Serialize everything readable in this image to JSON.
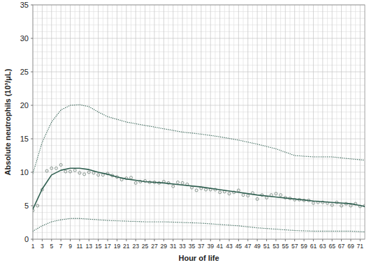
{
  "chart_data": {
    "type": "line",
    "x_label": "Hour of life",
    "y_label": "Absolute neutrophils (10³/μL)",
    "xlim": [
      1,
      72
    ],
    "xticks": [
      1,
      3,
      5,
      7,
      9,
      11,
      13,
      15,
      17,
      19,
      21,
      23,
      25,
      27,
      29,
      31,
      33,
      35,
      37,
      39,
      41,
      43,
      45,
      47,
      49,
      51,
      53,
      55,
      57,
      59,
      61,
      63,
      65,
      67,
      69,
      71
    ],
    "ylim": [
      0,
      35
    ],
    "yticks": [
      0,
      5,
      10,
      15,
      20,
      25,
      30,
      35
    ],
    "grid": true,
    "series": [
      {
        "type": "scatter",
        "marker": "circle",
        "color": "#7d8c85",
        "x": [
          1,
          2,
          3,
          4,
          5,
          6,
          7,
          8,
          9,
          10,
          11,
          12,
          13,
          14,
          15,
          16,
          17,
          18,
          19,
          20,
          21,
          22,
          23,
          24,
          25,
          26,
          27,
          28,
          29,
          30,
          31,
          32,
          33,
          34,
          35,
          36,
          37,
          38,
          39,
          40,
          41,
          42,
          43,
          44,
          45,
          46,
          47,
          48,
          49,
          50,
          51,
          52,
          53,
          54,
          55,
          56,
          57,
          58,
          59,
          60,
          61,
          62,
          63,
          64,
          65,
          66,
          67,
          68,
          69,
          70,
          71,
          72
        ],
        "values": [
          4.3,
          5.0,
          7.4,
          10.2,
          10.6,
          10.6,
          11.1,
          10.1,
          10.1,
          10.3,
          9.9,
          9.7,
          10.0,
          9.9,
          9.6,
          9.6,
          9.8,
          9.5,
          9.3,
          8.9,
          9.1,
          9.2,
          8.4,
          8.6,
          8.7,
          8.5,
          8.5,
          8.4,
          8.6,
          8.4,
          7.9,
          8.5,
          8.4,
          8.2,
          7.7,
          7.3,
          7.6,
          7.4,
          7.4,
          7.4,
          7.0,
          7.1,
          6.8,
          7.0,
          7.3,
          6.6,
          6.5,
          6.9,
          6.0,
          6.6,
          6.2,
          6.6,
          6.8,
          6.6,
          6.2,
          6.1,
          5.9,
          5.9,
          5.8,
          5.8,
          5.4,
          5.5,
          5.5,
          5.4,
          5.1,
          5.5,
          5.0,
          5.3,
          5.0,
          5.3,
          4.9,
          5.0
        ]
      },
      {
        "type": "line",
        "line_style": "solid",
        "color": "#2f5f50",
        "x": [
          1,
          3,
          5,
          7,
          9,
          11,
          13,
          15,
          17,
          19,
          21,
          23,
          25,
          29,
          33,
          37,
          41,
          45,
          49,
          53,
          57,
          61,
          65,
          69,
          72
        ],
        "values": [
          4.5,
          7.5,
          9.6,
          10.3,
          10.6,
          10.6,
          10.4,
          10.0,
          9.7,
          9.3,
          9.0,
          8.8,
          8.6,
          8.4,
          8.1,
          7.8,
          7.4,
          7.0,
          6.6,
          6.3,
          6.0,
          5.7,
          5.5,
          5.3,
          4.9
        ]
      },
      {
        "type": "line",
        "line_style": "dotted",
        "color": "#2f5f50",
        "x": [
          1,
          3,
          5,
          7,
          9,
          11,
          13,
          15,
          17,
          21,
          25,
          29,
          33,
          37,
          41,
          45,
          49,
          53,
          57,
          61,
          65,
          69,
          72
        ],
        "values": [
          9.8,
          14.5,
          17.5,
          19.3,
          20.0,
          20.1,
          19.8,
          19.0,
          18.3,
          17.5,
          17.0,
          16.5,
          16.0,
          15.7,
          15.3,
          14.8,
          14.2,
          13.5,
          12.5,
          12.3,
          12.3,
          12.0,
          11.8
        ]
      },
      {
        "type": "line",
        "line_style": "dotted",
        "color": "#2f5f50",
        "x": [
          1,
          3,
          5,
          7,
          9,
          11,
          13,
          17,
          21,
          25,
          29,
          33,
          37,
          41,
          45,
          49,
          53,
          57,
          61,
          65,
          69,
          72
        ],
        "values": [
          1.2,
          2.0,
          2.6,
          2.9,
          3.1,
          3.1,
          3.0,
          2.8,
          2.7,
          2.6,
          2.6,
          2.5,
          2.4,
          2.2,
          2.0,
          1.7,
          1.5,
          1.3,
          1.2,
          1.2,
          1.2,
          1.1
        ]
      }
    ]
  }
}
